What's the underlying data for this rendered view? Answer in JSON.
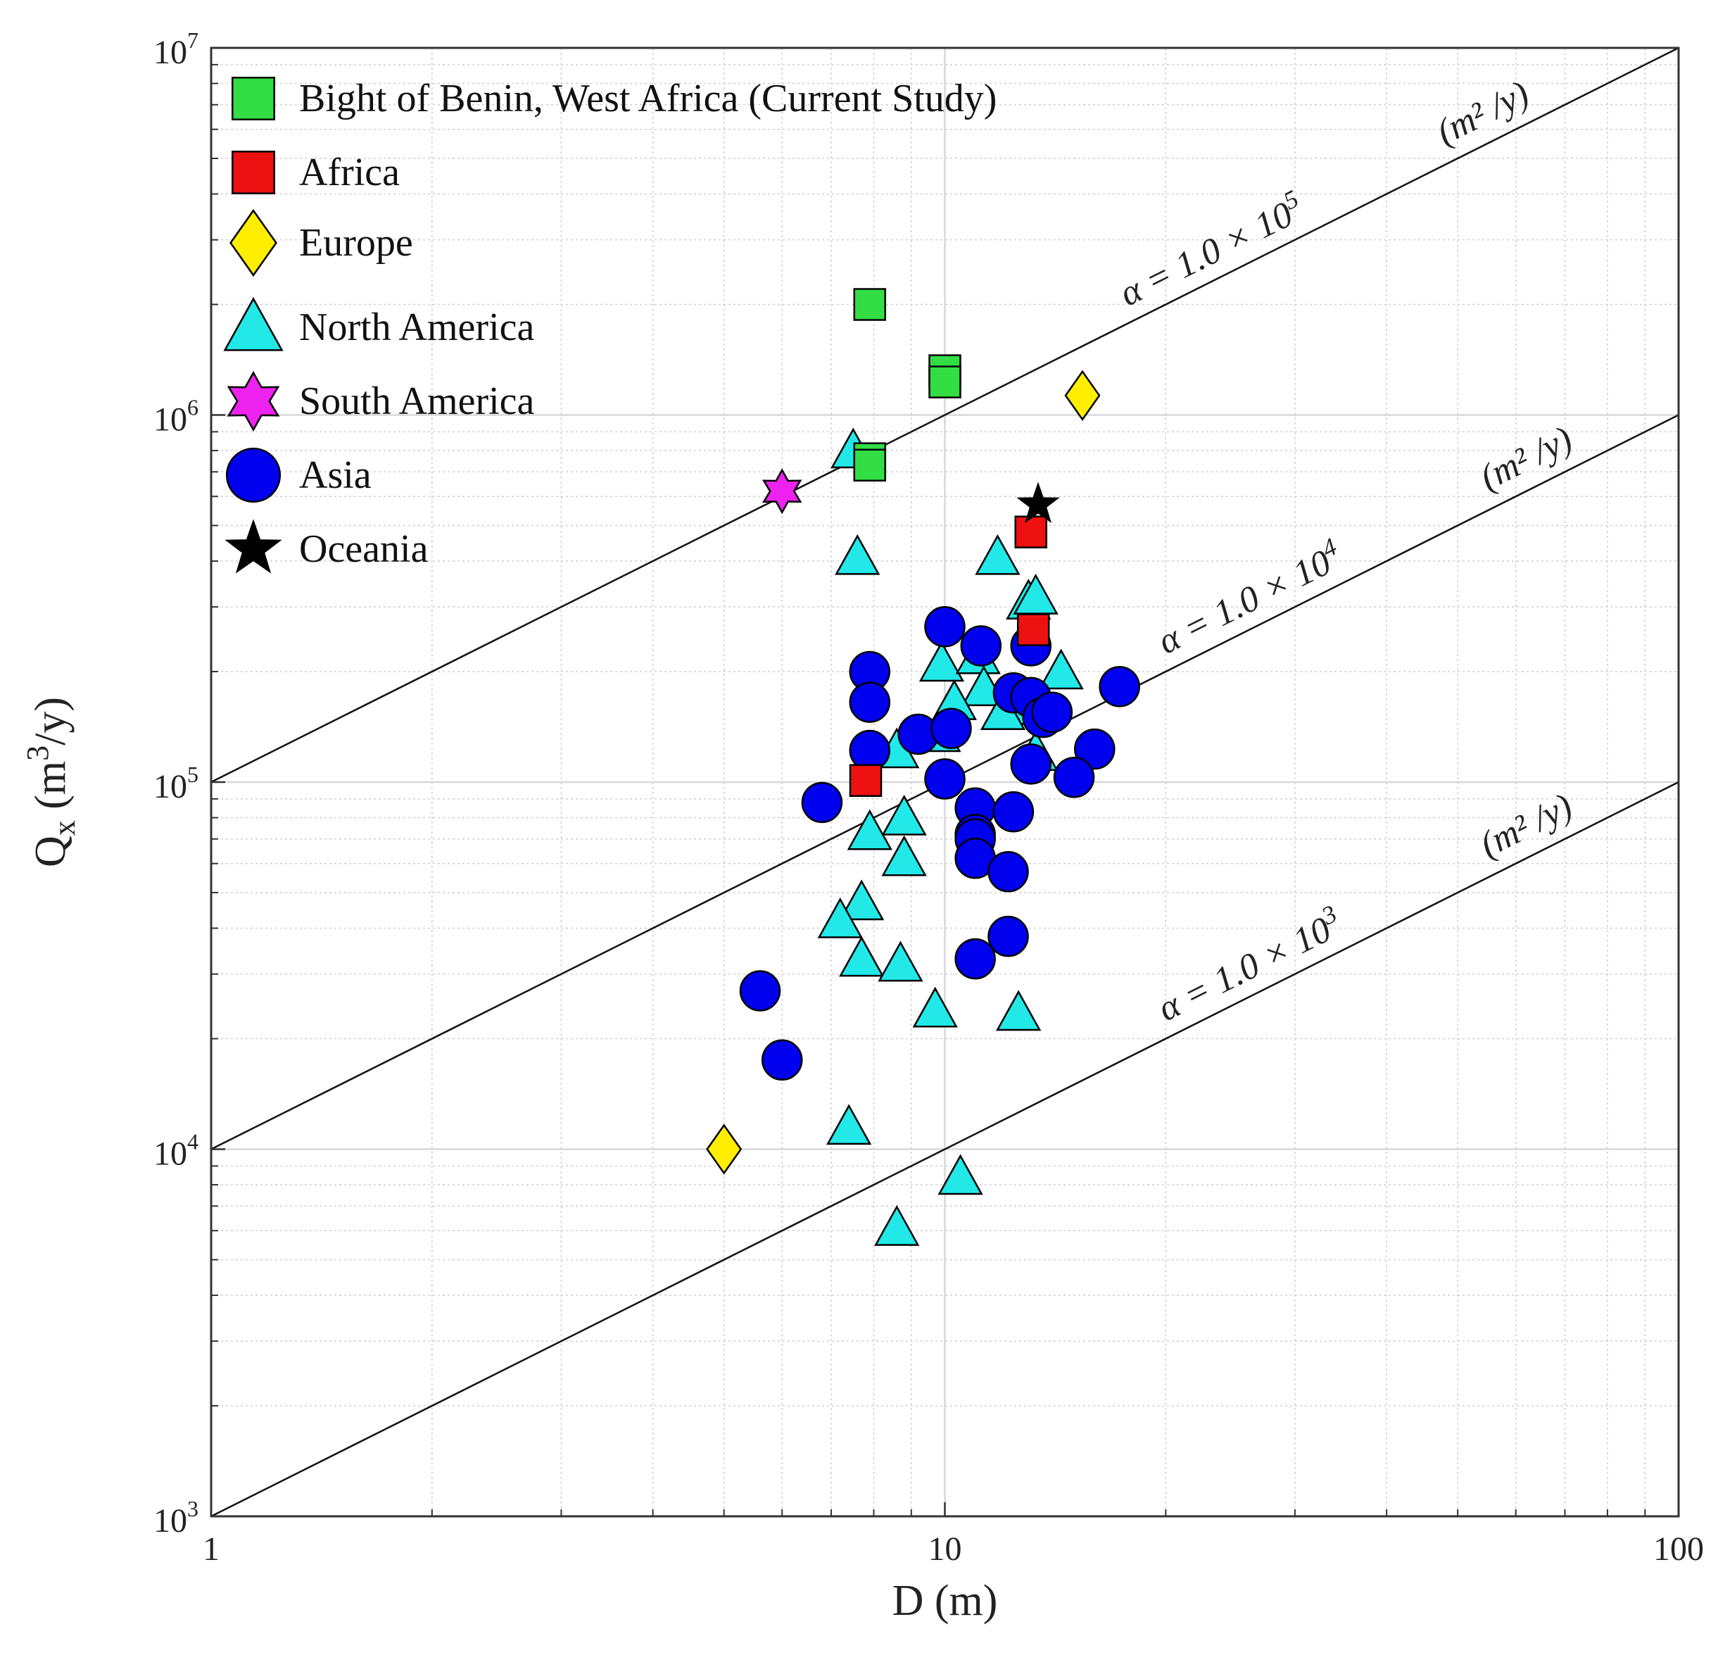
{
  "chart_data": {
    "type": "scatter",
    "x_scale": "log",
    "y_scale": "log",
    "xlim": [
      1,
      100
    ],
    "ylim": [
      1000,
      10000000
    ],
    "xlabel": "D (m)",
    "ylabel": "Q_x (m^3/y)",
    "grid": true,
    "legend_position": "top-left",
    "x_ticks": [
      "1",
      "10",
      "100"
    ],
    "y_ticks": [
      {
        "base": "10",
        "exp": "3"
      },
      {
        "base": "10",
        "exp": "4"
      },
      {
        "base": "10",
        "exp": "5"
      },
      {
        "base": "10",
        "exp": "6"
      },
      {
        "base": "10",
        "exp": "7"
      }
    ],
    "reference_lines": [
      {
        "alpha": 100000,
        "label": "α = 1.0 × 10",
        "exp": "5",
        "unit": "(m² /y)"
      },
      {
        "alpha": 10000,
        "label": "α = 1.0 × 10",
        "exp": "4",
        "unit": "(m² /y)"
      },
      {
        "alpha": 1000,
        "label": "α = 1.0 × 10",
        "exp": "3",
        "unit": "(m² /y)"
      }
    ],
    "series": [
      {
        "name": "Bight of Benin, West Africa (Current Study)",
        "marker": "square",
        "color": "#33dd44",
        "points": [
          [
            7.9,
            2000000
          ],
          [
            10.0,
            1320000
          ],
          [
            10.0,
            1230000
          ],
          [
            7.9,
            760000
          ],
          [
            7.9,
            730000
          ]
        ]
      },
      {
        "name": "Africa",
        "marker": "square",
        "color": "#ee1111",
        "points": [
          [
            13.1,
            480000
          ],
          [
            13.2,
            260000
          ],
          [
            7.8,
            101000
          ]
        ]
      },
      {
        "name": "Europe",
        "marker": "diamond",
        "color": "#ffee00",
        "points": [
          [
            15.4,
            1130000
          ],
          [
            5.0,
            10000
          ]
        ]
      },
      {
        "name": "North America",
        "marker": "triangle",
        "color": "#22e8e8",
        "points": [
          [
            7.5,
            800000
          ],
          [
            7.6,
            410000
          ],
          [
            11.8,
            410000
          ],
          [
            13.0,
            310000
          ],
          [
            13.3,
            320000
          ],
          [
            14.4,
            200000
          ],
          [
            9.9,
            210000
          ],
          [
            11.1,
            220000
          ],
          [
            11.3,
            180000
          ],
          [
            10.3,
            165000
          ],
          [
            12.8,
            160000
          ],
          [
            12.0,
            155000
          ],
          [
            9.8,
            135000
          ],
          [
            8.6,
            122000
          ],
          [
            13.3,
            120000
          ],
          [
            7.9,
            73000
          ],
          [
            8.8,
            80000
          ],
          [
            8.8,
            62000
          ],
          [
            7.7,
            47000
          ],
          [
            7.2,
            42000
          ],
          [
            7.7,
            33000
          ],
          [
            8.7,
            32000
          ],
          [
            9.7,
            24000
          ],
          [
            12.6,
            23500
          ],
          [
            7.4,
            11500
          ],
          [
            10.5,
            8400
          ],
          [
            8.6,
            6100
          ]
        ]
      },
      {
        "name": "South America",
        "marker": "hexagram",
        "color": "#ee22ee",
        "points": [
          [
            6.0,
            620000
          ]
        ]
      },
      {
        "name": "Asia",
        "marker": "circle",
        "color": "#0000ee",
        "points": [
          [
            10.0,
            265000
          ],
          [
            11.2,
            235000
          ],
          [
            13.1,
            235000
          ],
          [
            7.9,
            200000
          ],
          [
            7.9,
            165000
          ],
          [
            12.4,
            175000
          ],
          [
            13.1,
            170000
          ],
          [
            13.6,
            150000
          ],
          [
            14.0,
            155000
          ],
          [
            9.2,
            135000
          ],
          [
            10.2,
            140000
          ],
          [
            7.9,
            122000
          ],
          [
            13.1,
            112000
          ],
          [
            17.3,
            182000
          ],
          [
            16.0,
            123000
          ],
          [
            15.0,
            103000
          ],
          [
            10.0,
            102000
          ],
          [
            6.8,
            88000
          ],
          [
            11.0,
            85000
          ],
          [
            12.4,
            83000
          ],
          [
            11.0,
            72000
          ],
          [
            11.0,
            70000
          ],
          [
            11.0,
            62000
          ],
          [
            12.2,
            57000
          ],
          [
            12.2,
            38000
          ],
          [
            11.0,
            33000
          ],
          [
            5.6,
            27000
          ],
          [
            6.0,
            17500
          ]
        ]
      },
      {
        "name": "Oceania",
        "marker": "star",
        "color": "#000000",
        "points": [
          [
            13.4,
            570000
          ]
        ]
      }
    ]
  }
}
